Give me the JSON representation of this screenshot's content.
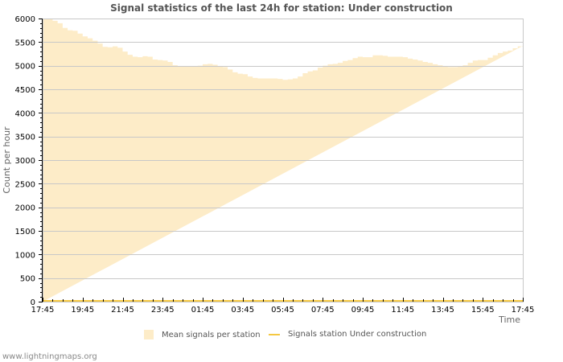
{
  "page": {
    "footer": "www.lightningmaps.org"
  },
  "chart_data": {
    "type": "area",
    "title": "Signal statistics of the last 24h for station: Under construction",
    "xlabel": "Time",
    "ylabel": "Count per hour",
    "ylim": [
      0,
      6000
    ],
    "yticks": [
      0,
      500,
      1000,
      1500,
      2000,
      2500,
      3000,
      3500,
      4000,
      4500,
      5000,
      5500,
      6000
    ],
    "xtick_labels": [
      "17:45",
      "19:45",
      "21:45",
      "23:45",
      "01:45",
      "03:45",
      "05:45",
      "07:45",
      "09:45",
      "11:45",
      "13:45",
      "15:45",
      "17:45"
    ],
    "grid": "horizontal",
    "legend_position": "bottom",
    "colors": {
      "area": "#fdecc8",
      "line": "#f5c842",
      "grid": "#c8c8c8",
      "frame": "#c8c8c8"
    },
    "series": [
      {
        "name": "Mean signals per station",
        "kind": "area",
        "x_hours": [
          0,
          0.25,
          0.5,
          0.75,
          1,
          1.25,
          1.5,
          1.75,
          2,
          2.25,
          2.5,
          2.75,
          3,
          3.25,
          3.5,
          3.75,
          4,
          4.25,
          4.5,
          4.75,
          5,
          5.25,
          5.5,
          5.75,
          6,
          6.25,
          6.5,
          6.75,
          7,
          7.25,
          7.5,
          7.75,
          8,
          8.25,
          8.5,
          8.75,
          9,
          9.25,
          9.5,
          9.75,
          10,
          10.25,
          10.5,
          10.75,
          11,
          11.25,
          11.5,
          11.75,
          12,
          12.25,
          12.5,
          12.75,
          13,
          13.25,
          13.5,
          13.75,
          14,
          14.25,
          14.5,
          14.75,
          15,
          15.25,
          15.5,
          15.75,
          16,
          16.25,
          16.5,
          16.75,
          17,
          17.25,
          17.5,
          17.75,
          18,
          18.25,
          18.5,
          18.75,
          19,
          19.25,
          19.5,
          19.75,
          20,
          20.25,
          20.5,
          20.75,
          21,
          21.25,
          21.5,
          21.75,
          22,
          22.25,
          22.5,
          22.75,
          23,
          23.25,
          23.5,
          23.75,
          24
        ],
        "values": [
          6000,
          5990,
          5950,
          5900,
          5800,
          5750,
          5740,
          5680,
          5620,
          5580,
          5530,
          5470,
          5400,
          5390,
          5410,
          5380,
          5300,
          5230,
          5190,
          5180,
          5200,
          5190,
          5130,
          5120,
          5110,
          5080,
          5010,
          4990,
          4980,
          4980,
          4980,
          5000,
          5030,
          5040,
          5020,
          4990,
          4970,
          4920,
          4860,
          4830,
          4820,
          4770,
          4740,
          4730,
          4730,
          4730,
          4730,
          4720,
          4700,
          4710,
          4730,
          4770,
          4840,
          4880,
          4900,
          4960,
          5000,
          5030,
          5040,
          5060,
          5100,
          5120,
          5160,
          5190,
          5180,
          5180,
          5220,
          5220,
          5210,
          5190,
          5190,
          5190,
          5180,
          5150,
          5130,
          5110,
          5080,
          5060,
          5030,
          5010,
          4980,
          4970,
          4970,
          4980,
          5010,
          5060,
          5110,
          5120,
          5120,
          5170,
          5220,
          5270,
          5300,
          5320,
          5370,
          5410,
          5420,
          5420,
          5420
        ]
      },
      {
        "name": "Signals station Under construction",
        "kind": "line",
        "value_constant": 0
      }
    ]
  }
}
